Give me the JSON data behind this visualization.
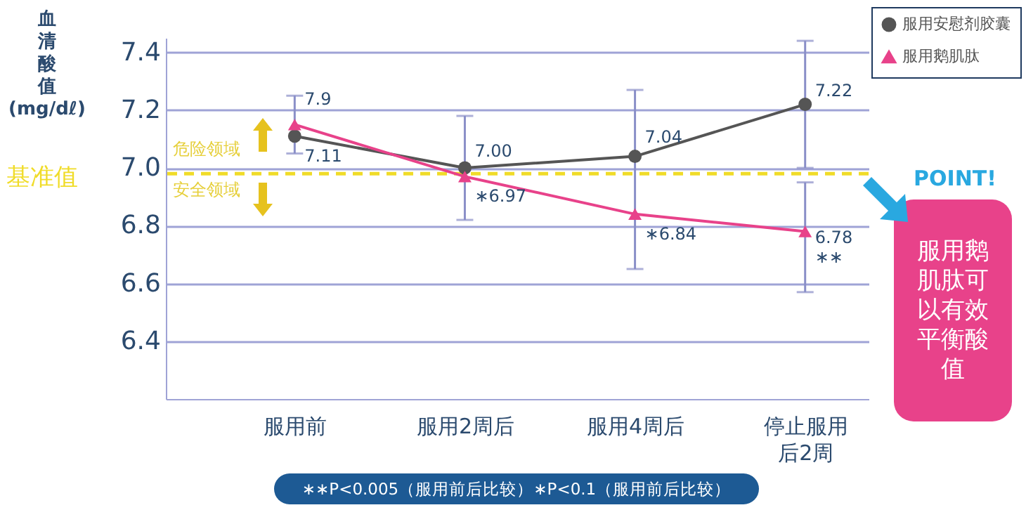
{
  "chart_data": {
    "type": "line",
    "ylabel": "血清酸值(mg/dℓ)",
    "categories": [
      "服用前",
      "服用2周后",
      "服用4周后",
      "停止服用后2周"
    ],
    "series": [
      {
        "name": "服用安慰剂胶囊",
        "color": "#555555",
        "marker": "circle",
        "values": [
          7.11,
          7.0,
          7.04,
          7.22
        ],
        "errors": [
          null,
          0.18,
          [
            6.65,
            7.27
          ],
          0.22
        ],
        "value_labels": [
          "7.11",
          "7.00",
          "7.04",
          "7.22"
        ]
      },
      {
        "name": "服用鹅肌肽",
        "color": "#e8428a",
        "marker": "triangle",
        "values": [
          7.15,
          6.97,
          6.84,
          6.78
        ],
        "errors": [
          0.1,
          null,
          null,
          [
            6.57,
            6.95
          ]
        ],
        "value_labels": [
          null,
          "∗6.97",
          "∗6.84",
          "6.78"
        ]
      }
    ],
    "ylim": [
      6.2,
      7.45
    ],
    "yticks": [
      6.4,
      6.6,
      6.8,
      {
        "value": 7,
        "label": "7.0"
      },
      7.2,
      7.4
    ],
    "grid": "y",
    "legend": "top right",
    "line_style": "solid",
    "ref_lines": [
      {
        "axis": "y",
        "value": 6.98,
        "label": "基准值",
        "color": "#f0dc28",
        "line_style": "dashed"
      }
    ],
    "annotations": [
      "危险领域",
      "安全领域",
      "POINT!",
      "服用鹅肌肽可以有效平衡酸值",
      "∗∗P<0.005（服用前后比较）∗P<0.1（服用前后比较）",
      {
        "text": "∗∗",
        "x": "停止服用后2周",
        "y": 6.78
      },
      {
        "text": "7.9",
        "x": "服用前",
        "y": 7.15
      }
    ]
  }
}
